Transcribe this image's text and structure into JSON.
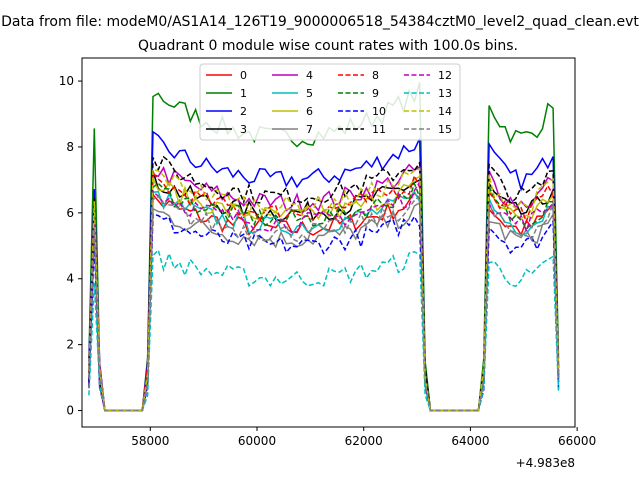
{
  "suptitle": "Data from file: modeM0/AS1A14_126T19_9000006518_54384cztM0_level2_quad_clean.evt",
  "chart_data": {
    "type": "line",
    "title": "Quadrant 0 module wise count rates with 100.0s bins.",
    "xlabel": "",
    "ylabel": "",
    "offset_text": "+4.983e8",
    "x_offset": 498300000,
    "xlim": [
      56720,
      65960
    ],
    "ylim": [
      -0.5,
      10.7
    ],
    "xticks": [
      58000,
      60000,
      62000,
      64000,
      66000
    ],
    "yticks": [
      0,
      2,
      4,
      6,
      8,
      10
    ],
    "grid": false,
    "legend_position": "top-center",
    "legend_columns": 4,
    "series": [
      {
        "name": "0",
        "color": "#ff0000",
        "dash": "solid",
        "level": 5.5
      },
      {
        "name": "1",
        "color": "#008000",
        "dash": "solid",
        "level": 8.3
      },
      {
        "name": "2",
        "color": "#0000ff",
        "dash": "solid",
        "level": 7.0
      },
      {
        "name": "3",
        "color": "#000000",
        "dash": "solid",
        "level": 6.0
      },
      {
        "name": "4",
        "color": "#bf00bf",
        "dash": "solid",
        "level": 6.3
      },
      {
        "name": "5",
        "color": "#00bfbf",
        "dash": "solid",
        "level": 5.6
      },
      {
        "name": "6",
        "color": "#bfbf00",
        "dash": "solid",
        "level": 5.9
      },
      {
        "name": "7",
        "color": "#808080",
        "dash": "solid",
        "level": 5.2
      },
      {
        "name": "8",
        "color": "#ff0000",
        "dash": "dashed",
        "level": 6.0
      },
      {
        "name": "9",
        "color": "#008000",
        "dash": "dashed",
        "level": 5.8
      },
      {
        "name": "10",
        "color": "#0000ff",
        "dash": "dashed",
        "level": 5.0
      },
      {
        "name": "11",
        "color": "#000000",
        "dash": "dashed",
        "level": 6.5
      },
      {
        "name": "12",
        "color": "#bf00bf",
        "dash": "dashed",
        "level": 5.7
      },
      {
        "name": "13",
        "color": "#00bfbf",
        "dash": "dashed",
        "level": 4.0
      },
      {
        "name": "14",
        "color": "#bfbf00",
        "dash": "dashed",
        "level": 6.2
      },
      {
        "name": "15",
        "color": "#808080",
        "dash": "dashed",
        "level": 5.4
      }
    ],
    "segments": [
      {
        "x_start": 56850,
        "x_end": 57050
      },
      {
        "x_start": 57950,
        "x_end": 63150
      },
      {
        "x_start": 64250,
        "x_end": 65650
      }
    ]
  }
}
